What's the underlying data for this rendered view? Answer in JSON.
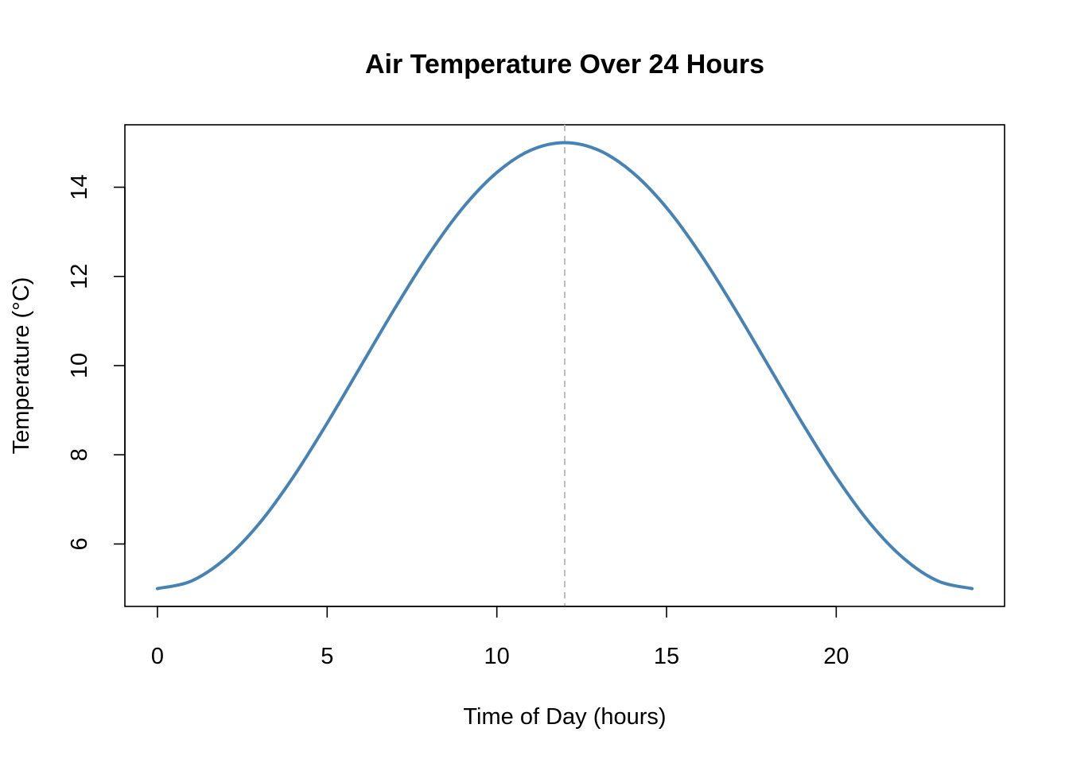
{
  "chart_data": {
    "type": "line",
    "title": "Air Temperature Over 24 Hours",
    "xlabel": "Time of Day (hours)",
    "ylabel": "Temperature (°C)",
    "xlim": [
      -0.96,
      24.96
    ],
    "ylim": [
      4.6,
      15.4
    ],
    "x_ticks": [
      0,
      5,
      10,
      15,
      20
    ],
    "x_tick_labels": [
      "0",
      "5",
      "10",
      "15",
      "20"
    ],
    "y_ticks": [
      6,
      8,
      10,
      12,
      14
    ],
    "y_tick_labels": [
      "6",
      "8",
      "10",
      "12",
      "14"
    ],
    "grid": false,
    "series": [
      {
        "name": "Temperature",
        "color": "#4682B4",
        "x": [
          0,
          1,
          2,
          3,
          4,
          5,
          6,
          7,
          8,
          9,
          10,
          11,
          12,
          13,
          14,
          15,
          16,
          17,
          18,
          19,
          20,
          21,
          22,
          23,
          24
        ],
        "values": [
          5.0,
          5.17,
          5.67,
          6.46,
          7.5,
          8.71,
          10.0,
          11.29,
          12.5,
          13.54,
          14.33,
          14.83,
          15.0,
          14.83,
          14.33,
          13.54,
          12.5,
          11.29,
          10.0,
          8.71,
          7.5,
          6.46,
          5.67,
          5.17,
          5.0
        ]
      }
    ],
    "reference_lines": [
      {
        "orientation": "vertical",
        "x": 12,
        "style": "dashed",
        "color": "#BEBEBE"
      }
    ]
  }
}
